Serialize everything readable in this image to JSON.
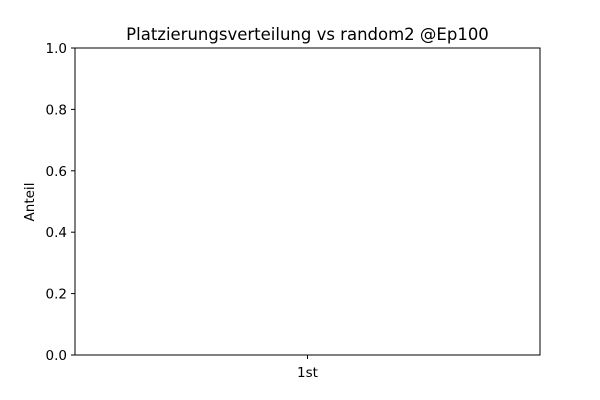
{
  "chart_data": {
    "type": "bar",
    "title": "Platzierungsverteilung vs random2 @Ep100",
    "xlabel": "",
    "ylabel": "Anteil",
    "categories": [
      "1st"
    ],
    "values": [
      0.0
    ],
    "ylim": [
      0,
      1
    ],
    "yticks": [
      0.0,
      0.2,
      0.4,
      0.6,
      0.8,
      1.0
    ],
    "ytick_labels": [
      "0.0",
      "0.2",
      "0.4",
      "0.6",
      "0.8",
      "1.0"
    ],
    "grid": false,
    "legend": "none",
    "colors": {
      "bar": "#1f77b4",
      "axes": "#000000",
      "background": "#ffffff"
    }
  }
}
